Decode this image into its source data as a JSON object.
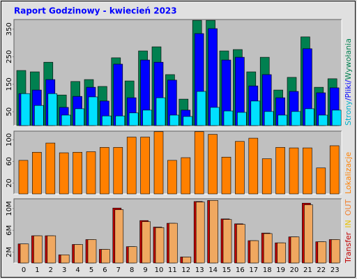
{
  "title": "Raport Godzinowy -  kwiecień 2023",
  "chart_data": [
    {
      "type": "bar",
      "ylim": [
        0,
        385
      ],
      "yticks": [
        50,
        150,
        250,
        350
      ],
      "legend": [
        {
          "text": "Strony",
          "color": "#00b0c8"
        },
        {
          "text": "/",
          "color": "#0000ff"
        },
        {
          "text": "Pliki",
          "color": "#0000ff"
        },
        {
          "text": "/",
          "color": "#0000ff"
        },
        {
          "text": "Wywołania",
          "color": "#008050"
        }
      ],
      "series": [
        {
          "color": "#008050",
          "values": [
            200,
            195,
            230,
            111,
            160,
            167,
            142,
            246,
            162,
            271,
            286,
            185,
            96,
            382,
            382,
            271,
            276,
            195,
            248,
            129,
            175,
            322,
            139,
            170
          ]
        },
        {
          "color": "#0000ff",
          "values": [
            116,
            129,
            167,
            66,
            106,
            139,
            89,
            223,
            101,
            238,
            230,
            165,
            56,
            334,
            352,
            238,
            248,
            144,
            185,
            101,
            124,
            279,
            119,
            137
          ]
        },
        {
          "color": "#00e0ff",
          "values": [
            116,
            73,
            116,
            38,
            61,
            104,
            35,
            35,
            46,
            56,
            101,
            38,
            33,
            124,
            66,
            53,
            48,
            89,
            51,
            38,
            51,
            61,
            38,
            56
          ]
        }
      ]
    },
    {
      "type": "bar",
      "ylim": [
        0,
        116
      ],
      "yticks": [
        20,
        60,
        100
      ],
      "legend": [
        {
          "text": "Lokalizacje",
          "color": "#ff8000"
        }
      ],
      "series": [
        {
          "color": "#ff8000",
          "values": [
            62,
            77,
            94,
            76,
            77,
            78,
            86,
            86,
            105,
            105,
            115,
            62,
            67,
            115,
            110,
            68,
            97,
            103,
            65,
            86,
            85,
            85,
            48,
            89
          ]
        }
      ]
    },
    {
      "type": "bar",
      "ylim": [
        0,
        11.8
      ],
      "yticks": [
        {
          "value": 2,
          "label": "2M"
        },
        {
          "value": 6,
          "label": "6M"
        },
        {
          "value": 10,
          "label": "10M"
        }
      ],
      "categories": [
        "0",
        "1",
        "2",
        "3",
        "4",
        "5",
        "6",
        "7",
        "8",
        "9",
        "10",
        "11",
        "12",
        "13",
        "14",
        "15",
        "16",
        "17",
        "18",
        "19",
        "20",
        "21",
        "22",
        "23"
      ],
      "legend": [
        {
          "text": "Transfer",
          "color": "#c00000"
        },
        {
          "text": "IN",
          "color": "#e8c000"
        },
        {
          "text": "OUT",
          "color": "#f08030"
        }
      ],
      "series": [
        {
          "color": "#c00000",
          "values": [
            3.5,
            5.0,
            5.0,
            1.5,
            3.4,
            4.3,
            2.5,
            10.1,
            3.0,
            7.8,
            6.6,
            7.3,
            1.1,
            11.3,
            11.5,
            8.1,
            7.2,
            4.1,
            5.5,
            3.7,
            4.8,
            11.0,
            3.9,
            4.3
          ]
        },
        {
          "color": "#f0a860",
          "values": [
            3.5,
            5.0,
            5.0,
            1.5,
            3.4,
            4.3,
            2.5,
            9.8,
            3.0,
            7.6,
            6.5,
            7.3,
            1.1,
            11.2,
            11.5,
            8.0,
            7.1,
            4.1,
            5.4,
            3.7,
            4.8,
            10.7,
            3.9,
            4.3
          ]
        }
      ]
    }
  ]
}
